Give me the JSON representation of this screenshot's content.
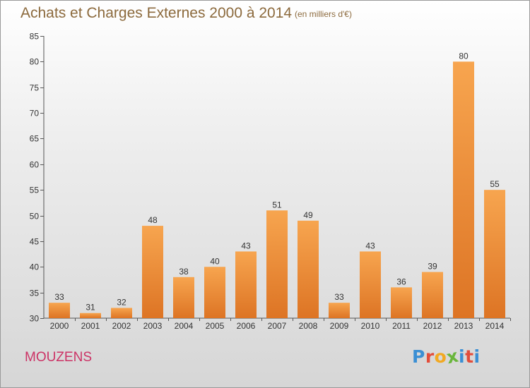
{
  "header": {
    "title": "Achats et Charges Externes 2000 à 2014",
    "unit": "(en milliers d'€)"
  },
  "footer": {
    "commune": "MOUZENS",
    "logo_text": "Proxiti"
  },
  "colors": {
    "bar_light": "#f7a54f",
    "bar_dark": "#dd7424",
    "title": "#8c6a3d",
    "commune": "#cc3366",
    "logo_letters": [
      "#3b8fd4",
      "#e34d3a",
      "#f2a922",
      "#6ab63c",
      "#3b8fd4",
      "#e34d3a",
      "#3b8fd4"
    ]
  },
  "chart_data": {
    "type": "bar",
    "categories": [
      "2000",
      "2001",
      "2002",
      "2003",
      "2004",
      "2005",
      "2006",
      "2007",
      "2008",
      "2009",
      "2010",
      "2011",
      "2012",
      "2013",
      "2014"
    ],
    "values": [
      33,
      31,
      32,
      48,
      38,
      40,
      43,
      51,
      49,
      33,
      43,
      36,
      39,
      80,
      55
    ],
    "ylim": [
      30,
      85
    ],
    "yticks": [
      30,
      35,
      40,
      45,
      50,
      55,
      60,
      65,
      70,
      75,
      80,
      85
    ],
    "grid": false,
    "data_labels": true
  }
}
